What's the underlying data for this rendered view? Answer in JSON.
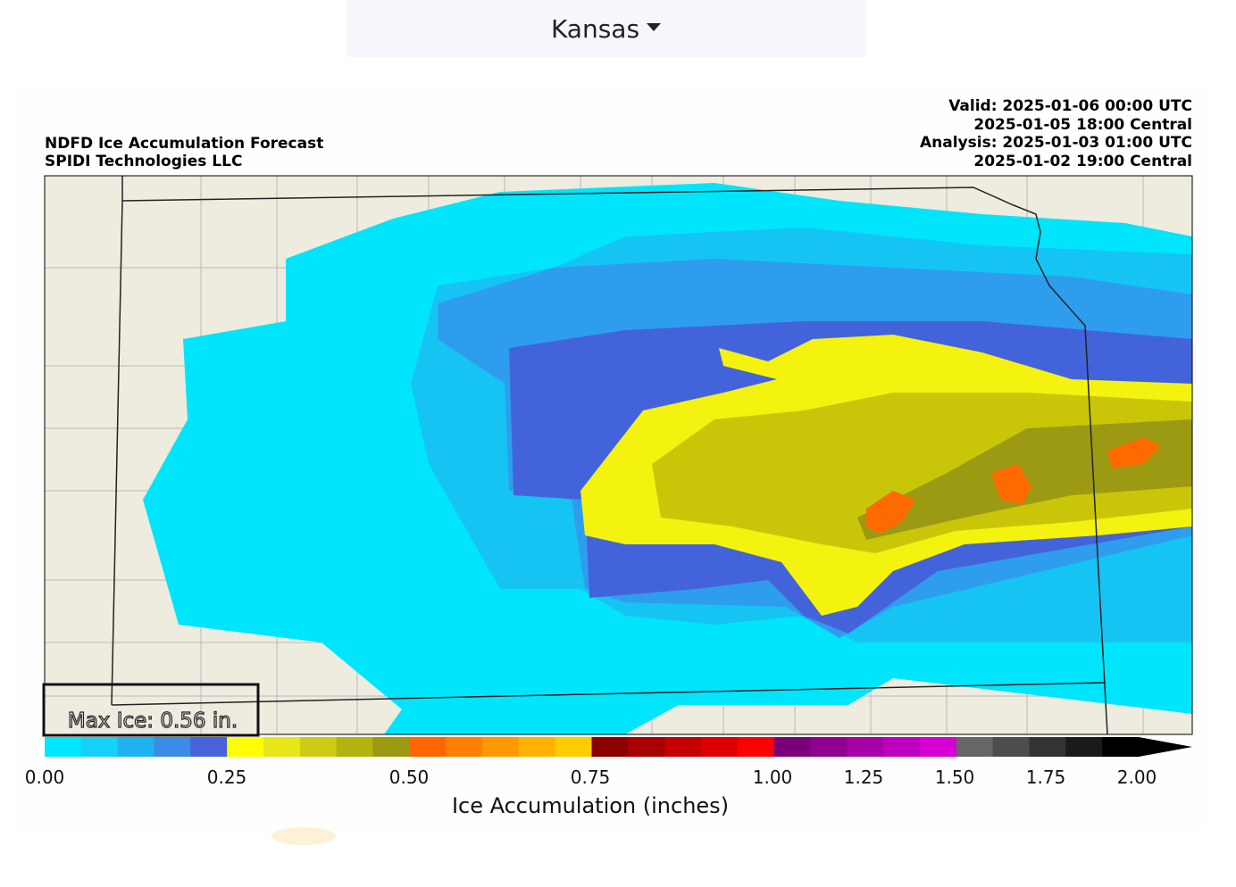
{
  "selector": {
    "label": "Kansas"
  },
  "map": {
    "title_left": [
      "NDFD Ice Accumulation Forecast",
      "SPIDI Technologies LLC"
    ],
    "title_right": [
      "Valid: 2025-01-06 00:00 UTC",
      "2025-01-05 18:00 Central",
      "Analysis: 2025-01-03 01:00 UTC",
      "2025-01-02 19:00 Central"
    ],
    "max_label": "Max Ice: 0.56 in.",
    "colorbar": {
      "label": "Ice Accumulation (inches)",
      "ticks": [
        "0.00",
        "0.25",
        "0.50",
        "0.75",
        "1.00",
        "1.25",
        "1.50",
        "1.75",
        "2.00"
      ],
      "colors": [
        "#00e8ff",
        "#14d2f7",
        "#1fb2f0",
        "#3a8ce6",
        "#4863da",
        "#ffff00",
        "#e6e619",
        "#cccc14",
        "#b3b30f",
        "#999912",
        "#ff6600",
        "#ff7f00",
        "#ff9900",
        "#ffb300",
        "#ffcc00",
        "#8b0000",
        "#a80000",
        "#c40000",
        "#de0000",
        "#ff0000",
        "#7a007a",
        "#8f008f",
        "#a600a6",
        "#bd00bd",
        "#d400d4",
        "#666666",
        "#4d4d4d",
        "#333333",
        "#1a1a1a",
        "#000000"
      ]
    }
  }
}
